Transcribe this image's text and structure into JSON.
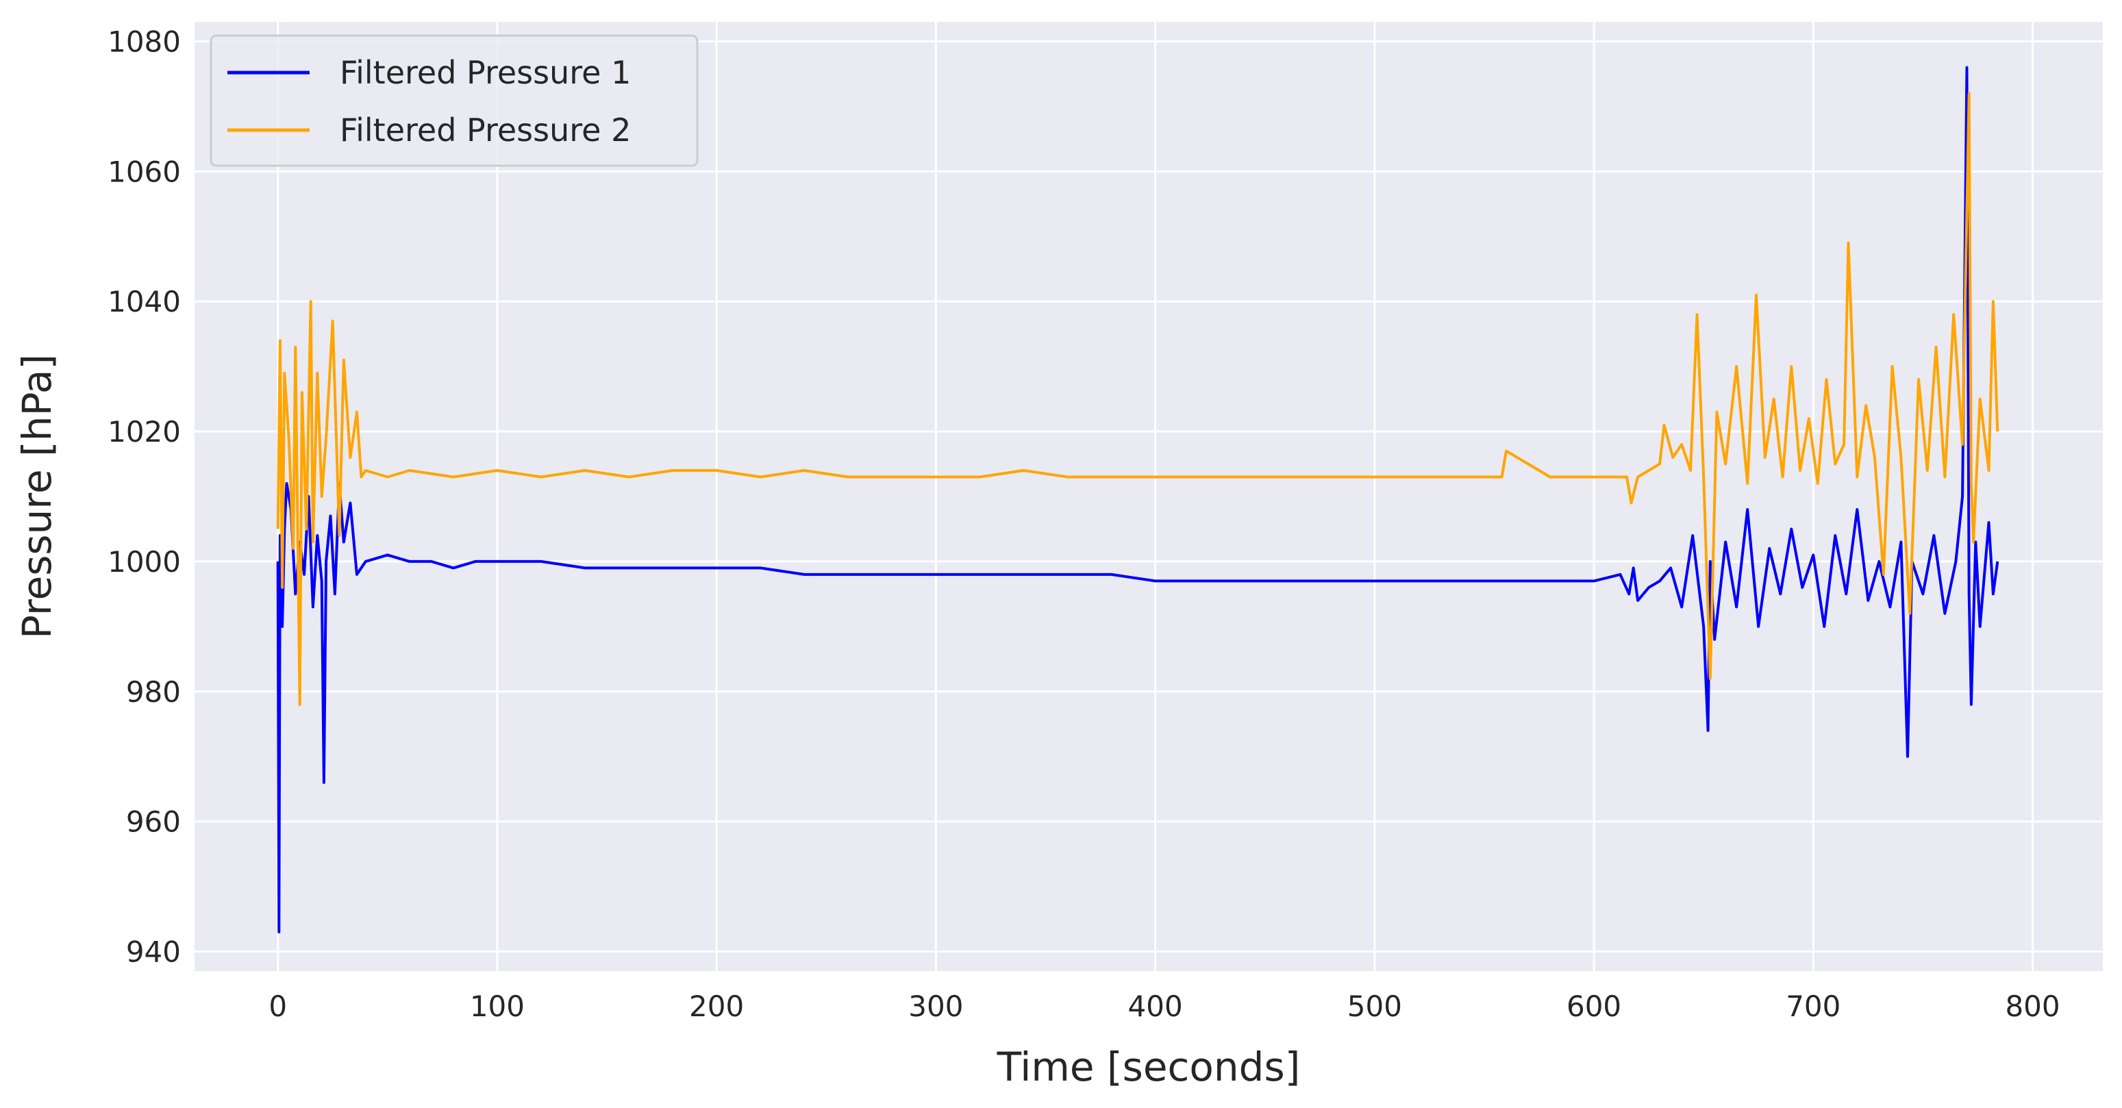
{
  "chart_data": {
    "type": "line",
    "title": "",
    "xlabel": "Time [seconds]",
    "ylabel": "Pressure [hPa]",
    "xlim": [
      -38,
      832
    ],
    "ylim": [
      937,
      1083
    ],
    "xticks": [
      0,
      100,
      200,
      300,
      400,
      500,
      600,
      700,
      800
    ],
    "yticks": [
      940,
      960,
      980,
      1000,
      1020,
      1040,
      1060,
      1080
    ],
    "grid": true,
    "legend_position": "top-left",
    "background": "#eaeaf2",
    "series": [
      {
        "name": "Filtered Pressure 1",
        "color": "#0000ff",
        "x": [
          0,
          0.5,
          1,
          2,
          3,
          4,
          6,
          8,
          10,
          12,
          14,
          16,
          18,
          20,
          21,
          22,
          24,
          26,
          28,
          30,
          33,
          36,
          40,
          50,
          60,
          70,
          80,
          90,
          100,
          120,
          140,
          160,
          180,
          200,
          220,
          240,
          260,
          280,
          300,
          320,
          340,
          360,
          380,
          400,
          420,
          440,
          460,
          480,
          500,
          520,
          540,
          560,
          580,
          600,
          612,
          616,
          618,
          620,
          625,
          630,
          635,
          640,
          645,
          650,
          652,
          653,
          655,
          660,
          665,
          670,
          675,
          680,
          685,
          690,
          695,
          700,
          705,
          710,
          715,
          720,
          725,
          730,
          735,
          740,
          743,
          745,
          750,
          755,
          760,
          765,
          768,
          770,
          771,
          772,
          774,
          776,
          778,
          780,
          782,
          784
        ],
        "values": [
          1000,
          943,
          1004,
          990,
          1005,
          1012,
          1008,
          995,
          1003,
          998,
          1010,
          993,
          1004,
          997,
          966,
          1000,
          1007,
          995,
          1012,
          1003,
          1009,
          998,
          1000,
          1001,
          1000,
          1000,
          999,
          1000,
          1000,
          1000,
          999,
          999,
          999,
          999,
          999,
          998,
          998,
          998,
          998,
          998,
          998,
          998,
          998,
          997,
          997,
          997,
          997,
          997,
          997,
          997,
          997,
          997,
          997,
          997,
          998,
          995,
          999,
          994,
          996,
          997,
          999,
          993,
          1004,
          990,
          974,
          1000,
          988,
          1003,
          993,
          1008,
          990,
          1002,
          995,
          1005,
          996,
          1001,
          990,
          1004,
          995,
          1008,
          994,
          1000,
          993,
          1003,
          970,
          1000,
          995,
          1004,
          992,
          1000,
          1010,
          1076,
          995,
          978,
          1003,
          990,
          998,
          1006,
          995,
          1000
        ],
        "note_removed": true
      },
      {
        "name": "Filtered Pressure 2",
        "color": "#ffa500",
        "x": [
          0,
          1,
          2,
          3,
          5,
          7,
          8,
          10,
          11,
          13,
          15,
          16,
          18,
          20,
          22,
          25,
          28,
          30,
          33,
          36,
          38,
          40,
          50,
          60,
          80,
          100,
          120,
          140,
          160,
          180,
          200,
          220,
          240,
          260,
          280,
          300,
          320,
          340,
          360,
          380,
          400,
          420,
          440,
          460,
          480,
          500,
          520,
          540,
          558,
          560,
          580,
          600,
          615,
          617,
          620,
          625,
          630,
          632,
          636,
          640,
          644,
          647,
          650,
          653,
          656,
          660,
          665,
          670,
          674,
          678,
          682,
          686,
          690,
          694,
          698,
          702,
          706,
          710,
          714,
          716,
          720,
          724,
          728,
          732,
          736,
          740,
          744,
          748,
          752,
          756,
          760,
          764,
          768,
          771,
          772,
          773,
          776,
          780,
          782,
          784
        ],
        "values": [
          1005,
          1034,
          996,
          1029,
          1019,
          1002,
          1033,
          978,
          1026,
          1005,
          1040,
          1003,
          1029,
          1010,
          1019,
          1037,
          1004,
          1031,
          1016,
          1023,
          1013,
          1014,
          1013,
          1014,
          1013,
          1014,
          1013,
          1014,
          1013,
          1014,
          1014,
          1013,
          1014,
          1013,
          1013,
          1013,
          1013,
          1014,
          1013,
          1013,
          1013,
          1013,
          1013,
          1013,
          1013,
          1013,
          1013,
          1013,
          1013,
          1017,
          1013,
          1013,
          1013,
          1009,
          1013,
          1014,
          1015,
          1021,
          1016,
          1018,
          1014,
          1038,
          1013,
          982,
          1023,
          1015,
          1030,
          1012,
          1041,
          1016,
          1025,
          1013,
          1030,
          1014,
          1022,
          1012,
          1028,
          1015,
          1018,
          1049,
          1013,
          1024,
          1016,
          998,
          1030,
          1016,
          992,
          1028,
          1014,
          1033,
          1013,
          1038,
          1018,
          1072,
          1012,
          1003,
          1025,
          1014,
          1040,
          1020
        ]
      }
    ]
  }
}
